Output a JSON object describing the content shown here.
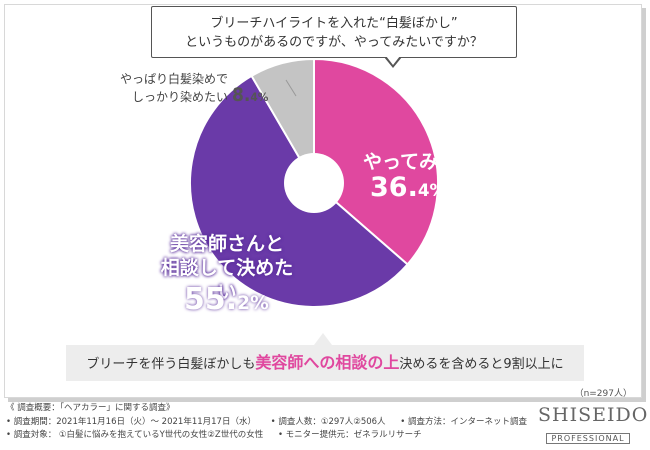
{
  "question": {
    "line1": "ブリーチハイライトを入れた“白髪ぼかし”",
    "line2": "というものがあるのですが、やってみたいですか？"
  },
  "chart_data": {
    "type": "pie",
    "donut": true,
    "slices": [
      {
        "label": "やってみたい",
        "value": 36.4,
        "pct_main": "36.",
        "pct_tail": "4%",
        "color": "#e0489f"
      },
      {
        "label": "美容師さんと相談して決めたい",
        "label_line1": "美容師さんと",
        "label_line2": "相談して決めたい",
        "value": 55.2,
        "pct_main": "55.",
        "pct_tail": "2%",
        "color": "#6a3aa8"
      },
      {
        "label": "やっぱり白髪染めでしっかり染めたい",
        "label_line1": "やっぱり白髪染めで",
        "label_line2": "しっかり染めたい",
        "value": 8.4,
        "pct_main": "8.",
        "pct_tail": "4%",
        "color": "#c4c4c4"
      }
    ]
  },
  "summary": {
    "pre": "ブリーチを伴う白髪ぼかしも",
    "highlight": "美容師への相談の上",
    "post": "決めるを含めると9割以上に"
  },
  "sample_size": "（n=297人）",
  "footer": {
    "title": "《 調査概要：「ヘアカラー」に関する調査》",
    "period": "• 調査期間：2021年11月16日（火）～ 2021年11月17日（水）",
    "respondents": "• 調査人数：①297人②506人",
    "method": "• 調査方法：インターネット調査",
    "target": "• 調査対象： ①白髪に悩みを抱えているY世代の女性②Z世代の女性",
    "provider": "• モニター提供元：ゼネラルリサーチ"
  },
  "brand": {
    "name": "SHISEIDO",
    "sub": "PROFESSIONAL"
  }
}
